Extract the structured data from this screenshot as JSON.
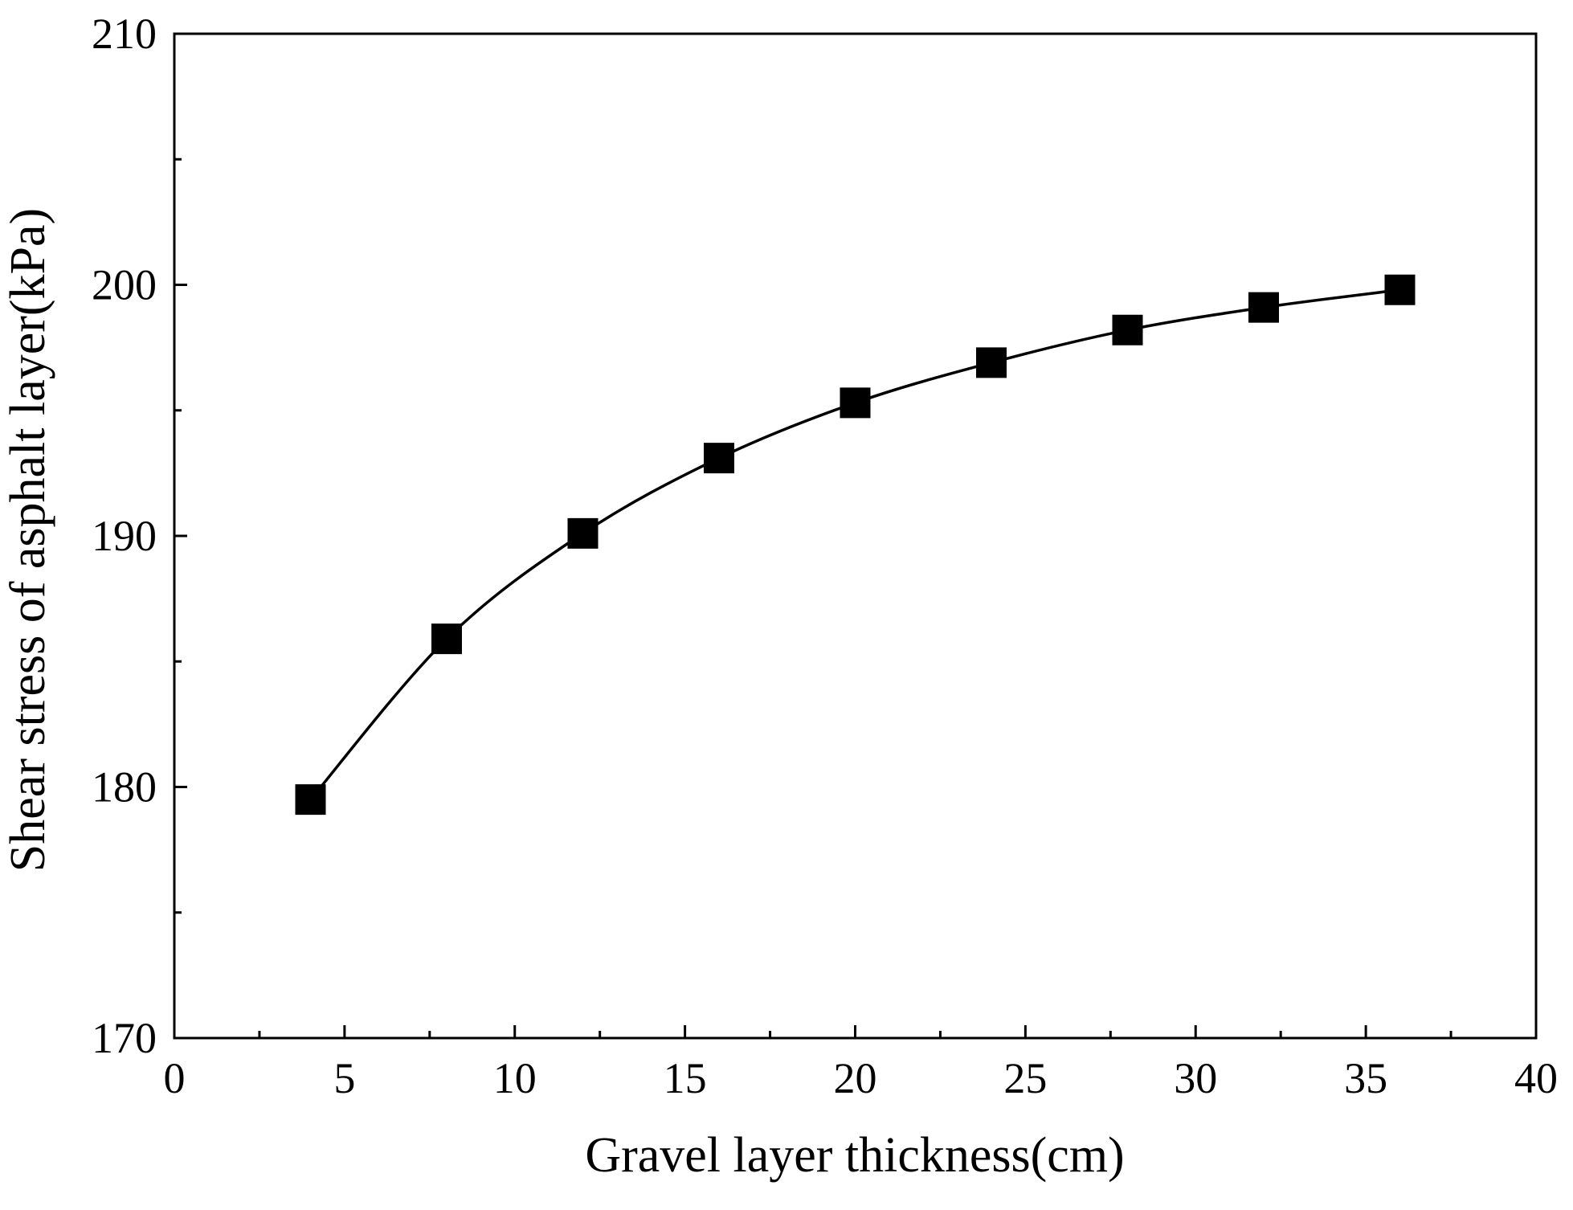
{
  "chart_data": {
    "type": "line",
    "title": "",
    "xlabel": "Gravel layer thickness(cm)",
    "ylabel": "Shear stress of asphalt layer(kPa)",
    "xlim": [
      0,
      40
    ],
    "ylim": [
      170,
      210
    ],
    "x_ticks": [
      0,
      5,
      10,
      15,
      20,
      25,
      30,
      35,
      40
    ],
    "x_tick_labels": [
      "0",
      "5",
      "10",
      "15",
      "20",
      "25",
      "30",
      "35",
      "40"
    ],
    "x_minor_ticks": [
      2.5,
      7.5,
      12.5,
      17.5,
      22.5,
      27.5,
      32.5,
      37.5
    ],
    "y_ticks": [
      170,
      180,
      190,
      200,
      210
    ],
    "y_tick_labels": [
      "170",
      "180",
      "190",
      "200",
      "210"
    ],
    "y_minor_ticks": [
      175,
      185,
      195,
      205
    ],
    "grid": false,
    "legend": "none",
    "marker": "square",
    "line_color": "#000000",
    "marker_color": "#000000",
    "series": [
      {
        "x": [
          4,
          8,
          12,
          16,
          20,
          24,
          28,
          32,
          36
        ],
        "y": [
          179.5,
          185.9,
          190.1,
          193.1,
          195.3,
          196.9,
          198.2,
          199.1,
          199.8
        ]
      }
    ]
  }
}
